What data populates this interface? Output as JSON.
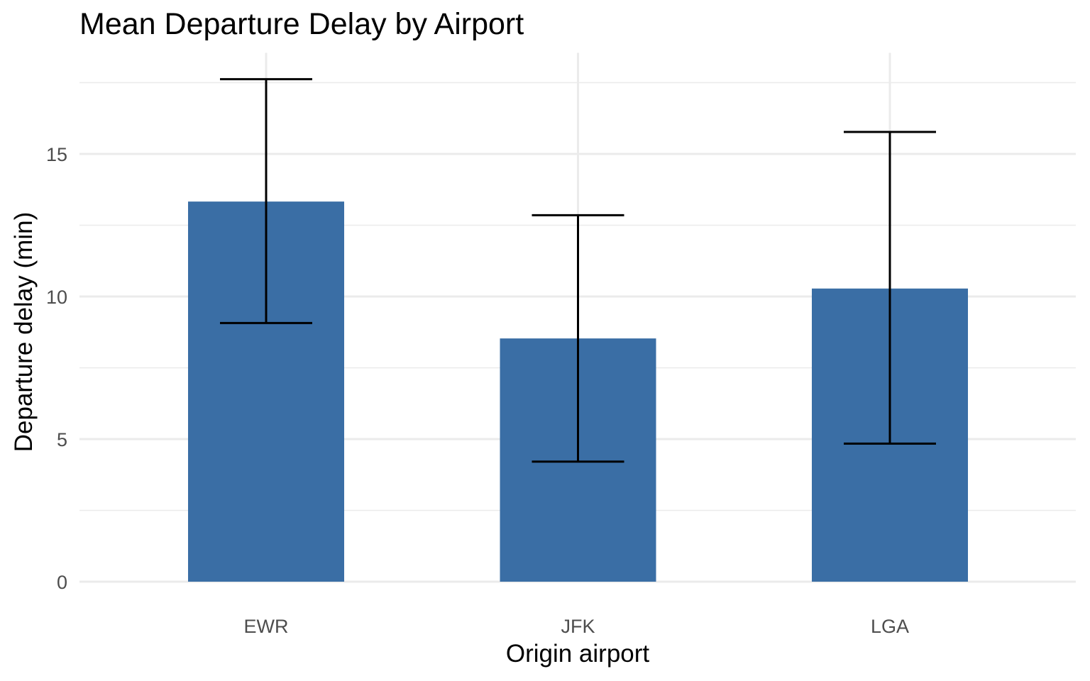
{
  "chart_data": {
    "type": "bar",
    "title": "Mean Departure Delay by Airport",
    "xlabel": "Origin airport",
    "ylabel": "Departure delay (min)",
    "categories": [
      "EWR",
      "JFK",
      "LGA"
    ],
    "values": [
      13.33,
      8.53,
      10.28
    ],
    "error_bars": [
      {
        "low": 9.07,
        "high": 17.62
      },
      {
        "low": 4.21,
        "high": 12.85
      },
      {
        "low": 4.84,
        "high": 15.77
      }
    ],
    "ylim": [
      0,
      17.6
    ],
    "yticks": [
      0,
      5,
      10,
      15
    ],
    "grid": true,
    "legend": "none",
    "bar_color": "#3a6ea5",
    "error_bar_color": "#000000",
    "grid_color": "#ebebeb"
  }
}
